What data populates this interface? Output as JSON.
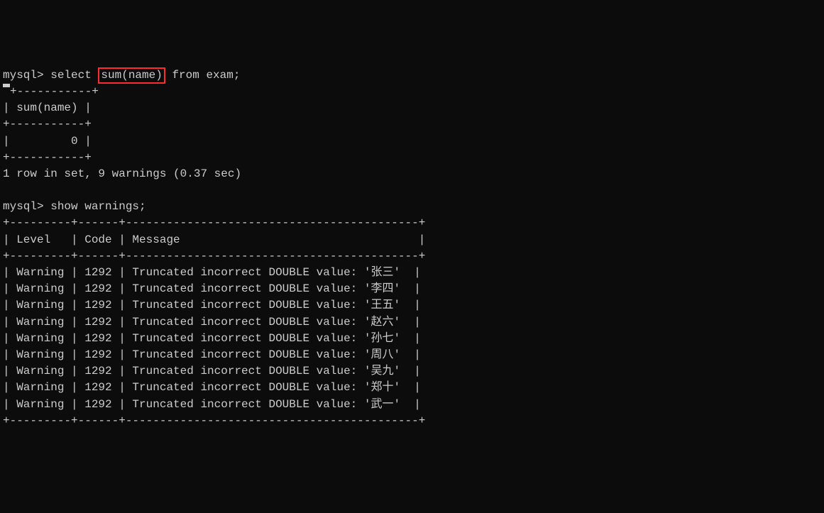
{
  "prompt": "mysql>",
  "query1_pre": " select ",
  "query1_highlight": "sum(name)",
  "query1_post": " from exam;",
  "result1": {
    "border_top": "+-----------+",
    "header_row": "| sum(name) |",
    "sep": "+-----------+",
    "data_row": "|         0 |",
    "border_bottom": "+-----------+",
    "summary": "1 row in set, 9 warnings (0.37 sec)"
  },
  "blank": "",
  "query2": " show warnings;",
  "warnings_table": {
    "border": "+---------+------+-------------------------------------------+",
    "header": "| Level   | Code | Message                                   |",
    "rows": [
      "| Warning | 1292 | Truncated incorrect DOUBLE value: '张三'  |",
      "| Warning | 1292 | Truncated incorrect DOUBLE value: '李四'  |",
      "| Warning | 1292 | Truncated incorrect DOUBLE value: '王五'  |",
      "| Warning | 1292 | Truncated incorrect DOUBLE value: '赵六'  |",
      "| Warning | 1292 | Truncated incorrect DOUBLE value: '孙七'  |",
      "| Warning | 1292 | Truncated incorrect DOUBLE value: '周八'  |",
      "| Warning | 1292 | Truncated incorrect DOUBLE value: '吴九'  |",
      "| Warning | 1292 | Truncated incorrect DOUBLE value: '郑十'  |",
      "| Warning | 1292 | Truncated incorrect DOUBLE value: '武一'  |"
    ]
  },
  "colors": {
    "bg": "#0c0c0c",
    "fg": "#cccccc",
    "highlight_border": "#ff2a2a"
  }
}
